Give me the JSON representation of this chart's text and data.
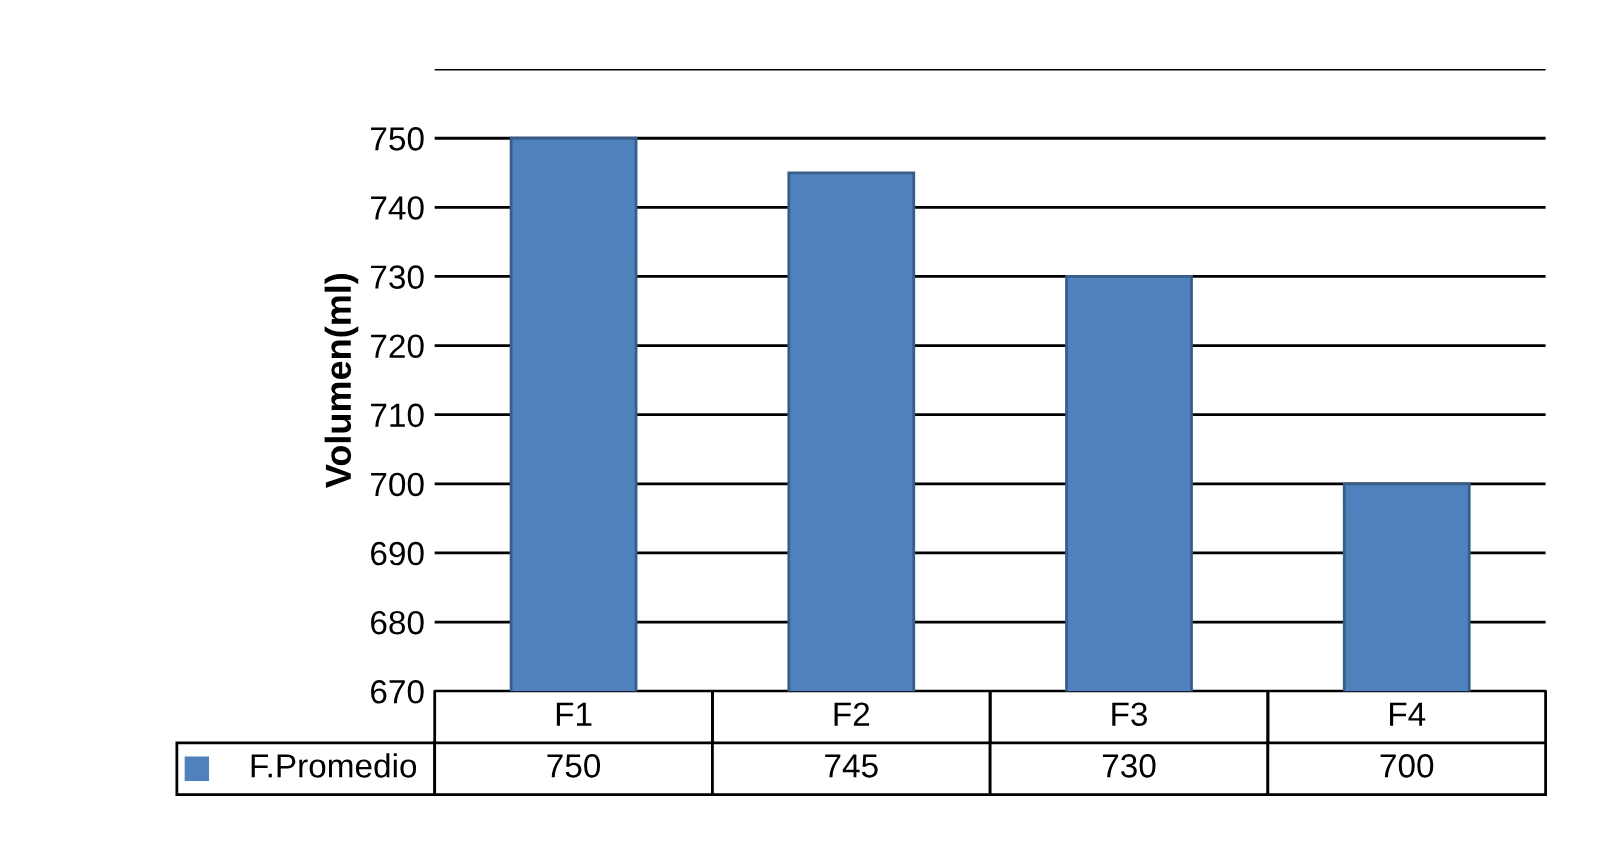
{
  "chart_data": {
    "type": "bar",
    "ylabel": "Volumen(ml)",
    "categories": [
      "F1",
      "F2",
      "F3",
      "F4"
    ],
    "series": [
      {
        "name": "F.Promedio",
        "color": "#4f81bd",
        "values": [
          750,
          745,
          730,
          700
        ]
      }
    ],
    "ylim": [
      670,
      760
    ],
    "yticks": [
      670,
      680,
      690,
      700,
      710,
      720,
      730,
      740,
      750,
      {
        "value": 760,
        "label": null
      }
    ],
    "grid": "y",
    "legend": "bottom",
    "data_labels": true,
    "tick_labels": "y"
  }
}
